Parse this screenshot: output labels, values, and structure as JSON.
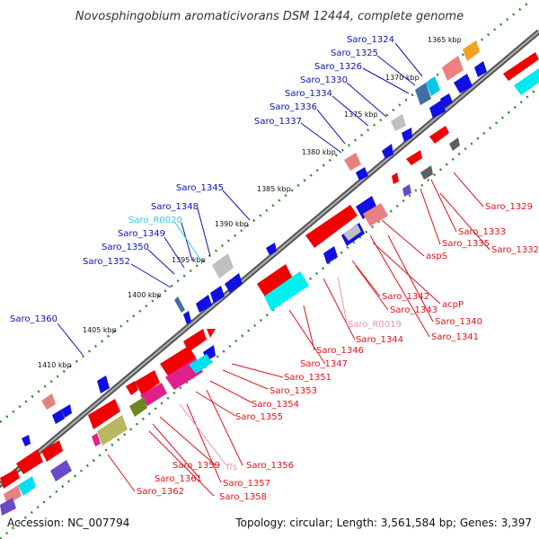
{
  "title": "Novosphingobium aromaticivorans DSM 12444, complete genome",
  "accession": "Accession: NC_007794",
  "summary": "Topology: circular; Length: 3,561,584 bp; Genes: 3,397",
  "colors": {
    "top_label": "#0b15b0",
    "bottom_label": "#e0141b",
    "rna_top": "#33c8e8",
    "rna_bottom": "#f090c0",
    "backbone": "#7f7f7f",
    "tick": "#2a8a2a"
  },
  "kbp_ticks": [
    "1365 kbp",
    "1370 kbp",
    "1375 kbp",
    "1380 kbp",
    "1385 kbp",
    "1390 kbp",
    "1395 kbp",
    "1400 kbp",
    "1405 kbp",
    "1410 kbp"
  ],
  "labels_top": [
    "Saro_1324",
    "Saro_1325",
    "Saro_1326",
    "Saro_1330",
    "Saro_1334",
    "Saro_1336",
    "Saro_1337",
    "Saro_1345",
    "Saro_1348",
    "Saro_R0020",
    "Saro_1349",
    "Saro_1350",
    "Saro_1352",
    "Saro_1360"
  ],
  "labels_bottom": [
    "Saro_1329",
    "Saro_1333",
    "Saro_1335",
    "Saro_1332",
    "aspS",
    "acpP",
    "Saro_1342",
    "Saro_1343",
    "Saro_1340",
    "Saro_1341",
    "Saro_R0019",
    "Saro_1344",
    "Saro_1346",
    "Saro_1347",
    "Saro_1351",
    "Saro_1353",
    "Saro_1354",
    "Saro_1355",
    "Saro_1356",
    "ffs",
    "Saro_1357",
    "Saro_1359",
    "Saro_1361",
    "Saro_1358",
    "Saro_1362"
  ]
}
